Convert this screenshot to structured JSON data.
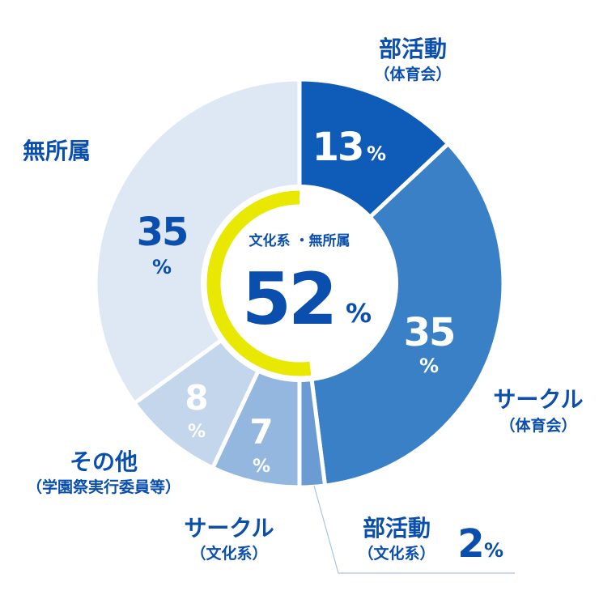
{
  "chart_data": {
    "type": "pie",
    "categories": [
      "部活動（体育会）",
      "サークル（体育会）",
      "部活動（文化系）",
      "サークル（文化系）",
      "その他（学園祭実行委員等）",
      "無所属"
    ],
    "values": [
      13,
      35,
      2,
      7,
      8,
      35
    ],
    "value_labels": [
      "13",
      "35",
      "2",
      "7",
      "8",
      "35"
    ],
    "unit": "%",
    "slice_labels": [
      {
        "main": "部活動",
        "sub": "（体育会）"
      },
      {
        "main": "サークル",
        "sub": "（体育会）"
      },
      {
        "main": "部活動",
        "sub": "（文化系）"
      },
      {
        "main": "サークル",
        "sub": "（文化系）"
      },
      {
        "main": "その他",
        "sub": "（学園祭実行委員等）"
      },
      {
        "main": "無所属",
        "sub": ""
      }
    ],
    "colors": [
      "#0f5cb8",
      "#3a80c6",
      "#6a9bd2",
      "#93b7df",
      "#c4d6ec",
      "#dde8f4"
    ],
    "center": {
      "label": "文化系 ・無所属",
      "value": "52",
      "unit": "%",
      "ring_color": "#e8e800"
    },
    "text_colors": {
      "primary": "#0b4fae",
      "white": "#ffffff"
    }
  }
}
